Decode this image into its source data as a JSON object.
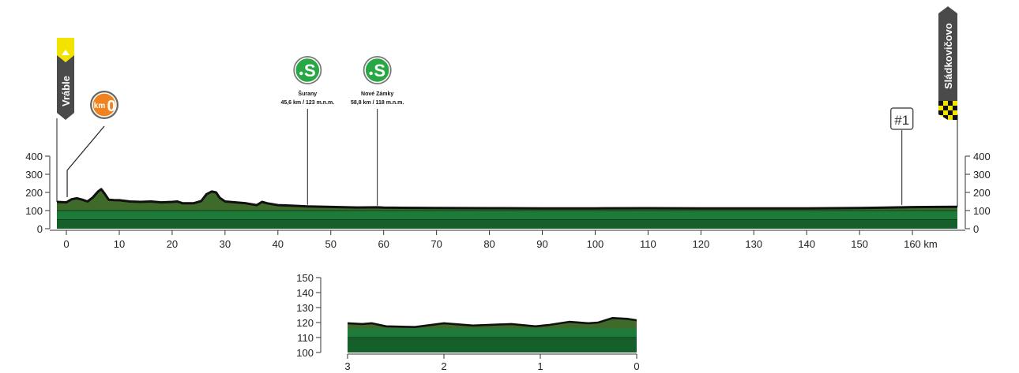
{
  "chart_data": [
    {
      "type": "area",
      "title": "",
      "xlabel": "",
      "ylabel": "",
      "x_unit_label": "160 km",
      "xlim": [
        -1.8,
        168.5
      ],
      "ylim": [
        0,
        400
      ],
      "x_ticks": [
        0,
        10,
        20,
        30,
        40,
        50,
        60,
        70,
        80,
        90,
        100,
        110,
        120,
        130,
        140,
        150,
        160
      ],
      "y_ticks": [
        0,
        100,
        200,
        300,
        400
      ],
      "y_axis_both_sides": true,
      "bands": [
        50,
        100
      ],
      "colors": {
        "fill_dark": "#15602a",
        "fill_light": "#1e7a39",
        "hill": "#3f6b2a",
        "stroke": "#111111"
      },
      "series": [
        {
          "x": [
            -1.8,
            0,
            1,
            2,
            3,
            4,
            5,
            6,
            6.6,
            7.2,
            8,
            9,
            10,
            12,
            14,
            16,
            18,
            20,
            21,
            22,
            24,
            25.5,
            26.5,
            27.5,
            28.3,
            29,
            30,
            32,
            34,
            36,
            37,
            38,
            40,
            42,
            45.6,
            50,
            55,
            58.8,
            60,
            70,
            80,
            90,
            100,
            110,
            120,
            130,
            140,
            150,
            155,
            158,
            160,
            165,
            168.5
          ],
          "y": [
            148,
            145,
            162,
            168,
            160,
            150,
            172,
            205,
            218,
            195,
            160,
            158,
            157,
            150,
            148,
            150,
            145,
            148,
            150,
            140,
            140,
            152,
            190,
            205,
            200,
            170,
            150,
            145,
            140,
            130,
            148,
            140,
            130,
            128,
            123,
            120,
            117,
            118,
            116,
            114,
            113,
            112,
            112,
            113,
            112,
            112,
            112,
            114,
            116,
            118,
            119,
            120,
            121
          ]
        }
      ],
      "markers": [
        {
          "type": "start",
          "label": "Vráble",
          "km": -1.8
        },
        {
          "type": "km0",
          "label": "km",
          "value": "0",
          "km": 0
        },
        {
          "type": "sprint",
          "symbol": "S",
          "name": "Šurany",
          "info": "45,6 km / 123 m.n.m.",
          "km": 45.6
        },
        {
          "type": "sprint",
          "symbol": "S",
          "name": "Nové Zámky",
          "info": "58,8 km / 118 m.n.m.",
          "km": 58.8
        },
        {
          "type": "point",
          "label": "#1",
          "km": 158
        },
        {
          "type": "finish",
          "label": "Sládkovičovo",
          "km": 168.5
        }
      ]
    },
    {
      "type": "area",
      "title": "",
      "xlabel": "",
      "ylabel": "",
      "xlim": [
        3,
        0
      ],
      "ylim": [
        100,
        150
      ],
      "x_ticks": [
        3,
        2,
        1,
        0
      ],
      "y_ticks": [
        100,
        110,
        120,
        130,
        140,
        150
      ],
      "bands": [
        110
      ],
      "series": [
        {
          "x": [
            3,
            2.85,
            2.75,
            2.6,
            2.3,
            2.0,
            1.7,
            1.3,
            1.05,
            0.9,
            0.7,
            0.5,
            0.4,
            0.25,
            0.1,
            0
          ],
          "y": [
            119.5,
            119,
            119.5,
            117.5,
            117,
            119.5,
            118,
            119,
            117.5,
            118.5,
            120.5,
            119.5,
            120,
            123,
            122.5,
            121.5
          ]
        }
      ]
    }
  ]
}
